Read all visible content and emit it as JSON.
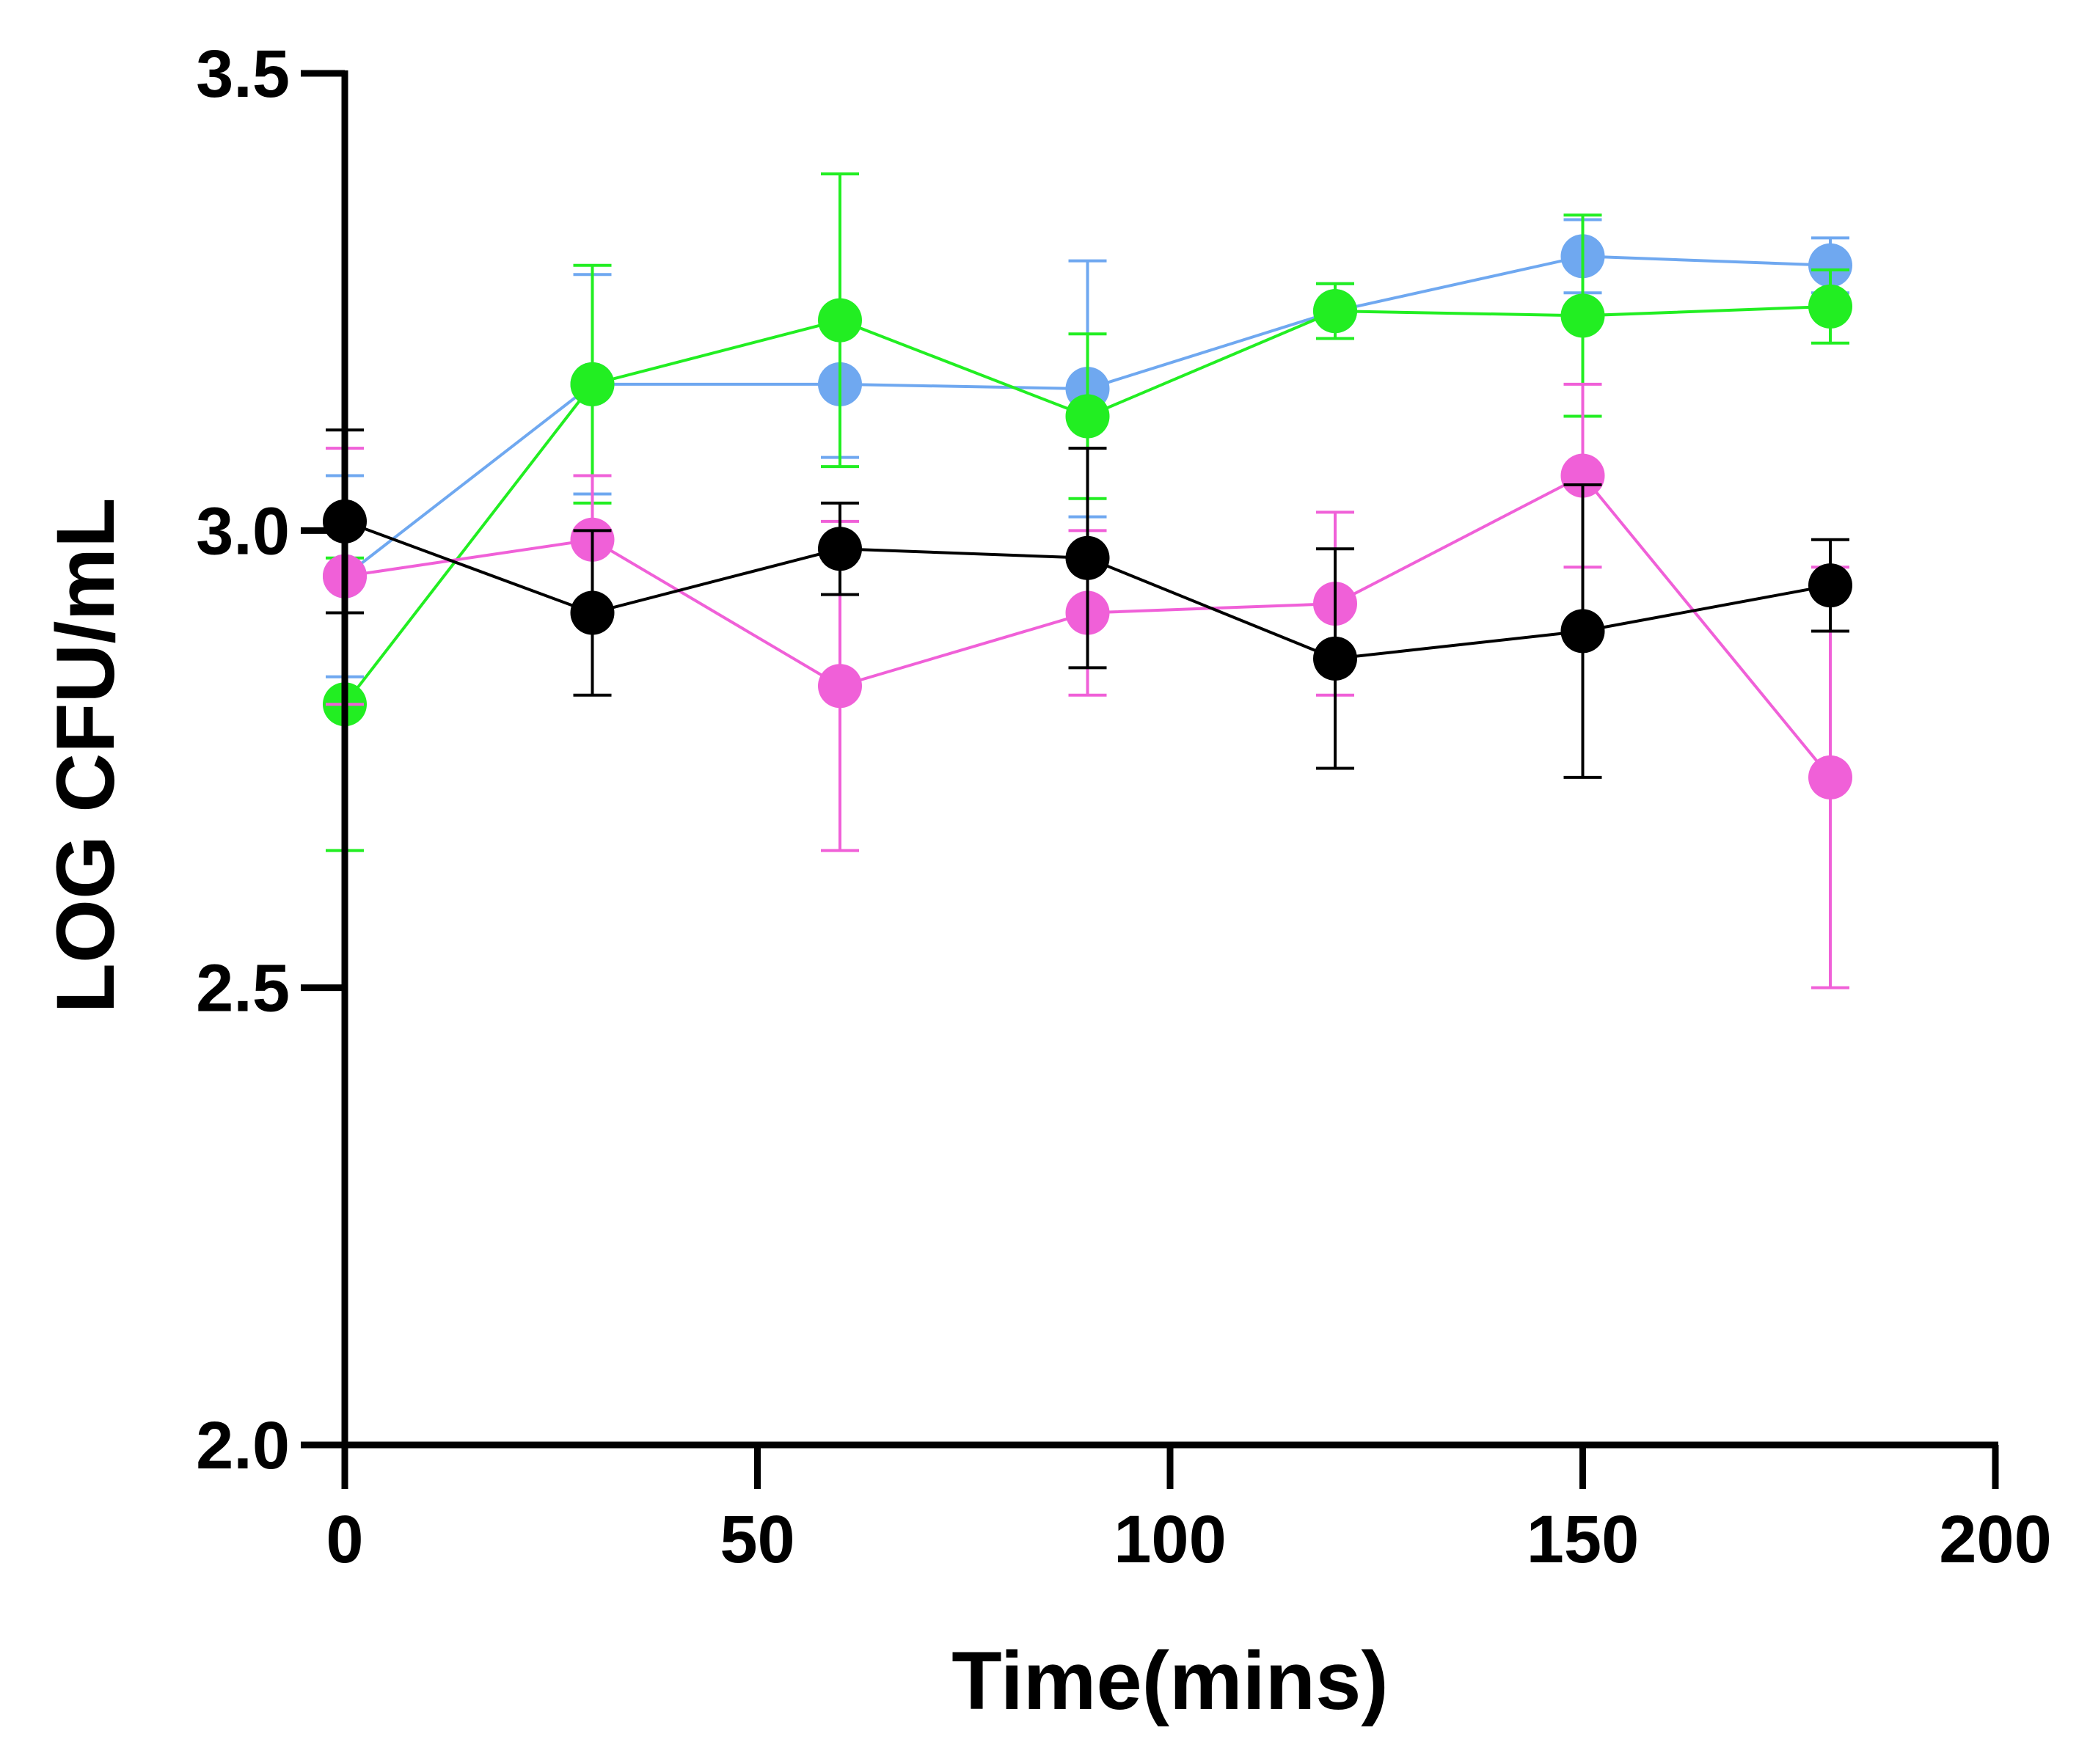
{
  "chart_data": {
    "type": "line",
    "title": "",
    "xlabel": "Time(mins)",
    "ylabel": "LOG CFU/mL",
    "xlim": [
      0,
      200
    ],
    "ylim": [
      2.0,
      3.5
    ],
    "xticks": [
      0,
      50,
      100,
      150,
      200
    ],
    "yticks": [
      2.0,
      2.5,
      3.0,
      3.5
    ],
    "xtick_labels": [
      "0",
      "50",
      "100",
      "150",
      "200"
    ],
    "ytick_labels": [
      "2.0",
      "2.5",
      "3.0",
      "3.5"
    ],
    "grid": false,
    "legend": "none",
    "x": [
      0,
      30,
      60,
      90,
      120,
      150,
      180
    ],
    "series": [
      {
        "name": "blue",
        "color": "#6fa8f0",
        "values": [
          2.95,
          3.16,
          3.16,
          3.155,
          3.24,
          3.3,
          3.29
        ],
        "errors": [
          0.11,
          0.12,
          0.08,
          0.14,
          0.03,
          0.04,
          0.03
        ]
      },
      {
        "name": "green",
        "color": "#22ee22",
        "values": [
          2.81,
          3.16,
          3.23,
          3.125,
          3.24,
          3.235,
          3.245
        ],
        "errors": [
          0.16,
          0.13,
          0.16,
          0.09,
          0.03,
          0.11,
          0.04
        ]
      },
      {
        "name": "magenta",
        "color": "#f060d8",
        "values": [
          2.95,
          2.99,
          2.83,
          2.91,
          2.92,
          3.06,
          2.73
        ],
        "errors": [
          0.14,
          0.07,
          0.18,
          0.09,
          0.1,
          0.1,
          0.23
        ]
      },
      {
        "name": "black",
        "color": "#000000",
        "values": [
          3.01,
          2.91,
          2.98,
          2.97,
          2.86,
          2.89,
          2.94
        ],
        "errors": [
          0.1,
          0.09,
          0.05,
          0.12,
          0.12,
          0.16,
          0.05
        ]
      }
    ]
  }
}
